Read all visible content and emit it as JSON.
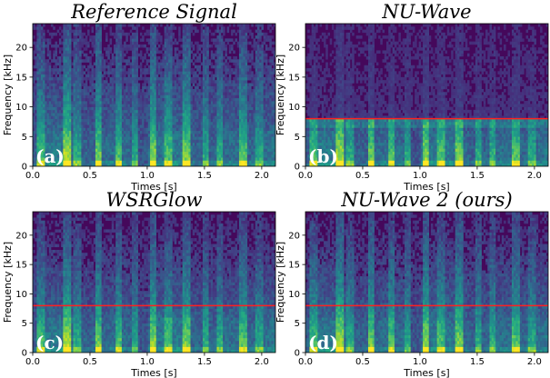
{
  "chart_data": [
    {
      "type": "heatmap",
      "title": "Reference Signal",
      "panel_label": "(a)",
      "xlabel": "Times [s]",
      "ylabel": "Frequency [kHz]",
      "xlim": [
        0,
        2.12
      ],
      "ylim": [
        0,
        24
      ],
      "xticks": [
        "0.0",
        "0.5",
        "1.0",
        "1.5",
        "2.0"
      ],
      "yticks": [
        "0",
        "5",
        "10",
        "15",
        "20"
      ],
      "cutoff_line_khz": null
    },
    {
      "type": "heatmap",
      "title": "NU-Wave",
      "panel_label": "(b)",
      "xlabel": "Times [s]",
      "ylabel": "Frequency [kHz]",
      "xlim": [
        0,
        2.12
      ],
      "ylim": [
        0,
        24
      ],
      "xticks": [
        "0.0",
        "0.5",
        "1.0",
        "1.5",
        "2.0"
      ],
      "yticks": [
        "0",
        "5",
        "10",
        "15",
        "20"
      ],
      "cutoff_line_khz": 8
    },
    {
      "type": "heatmap",
      "title": "WSRGlow",
      "panel_label": "(c)",
      "xlabel": "Times [s]",
      "ylabel": "Frequency [kHz]",
      "xlim": [
        0,
        2.12
      ],
      "ylim": [
        0,
        24
      ],
      "xticks": [
        "0.0",
        "0.5",
        "1.0",
        "1.5",
        "2.0"
      ],
      "yticks": [
        "0",
        "5",
        "10",
        "15",
        "20"
      ],
      "cutoff_line_khz": 8
    },
    {
      "type": "heatmap",
      "title": "NU-Wave 2 (ours)",
      "panel_label": "(d)",
      "xlabel": "Times [s]",
      "ylabel": "Frequency [kHz]",
      "xlim": [
        0,
        2.12
      ],
      "ylim": [
        0,
        24
      ],
      "xticks": [
        "0.0",
        "0.5",
        "1.0",
        "1.5",
        "2.0"
      ],
      "yticks": [
        "0",
        "5",
        "10",
        "15",
        "20"
      ],
      "cutoff_line_khz": 8
    }
  ],
  "colors": {
    "colormap": "viridis",
    "cutoff_line": "#ff2020",
    "panel_label": "#ffffff"
  }
}
